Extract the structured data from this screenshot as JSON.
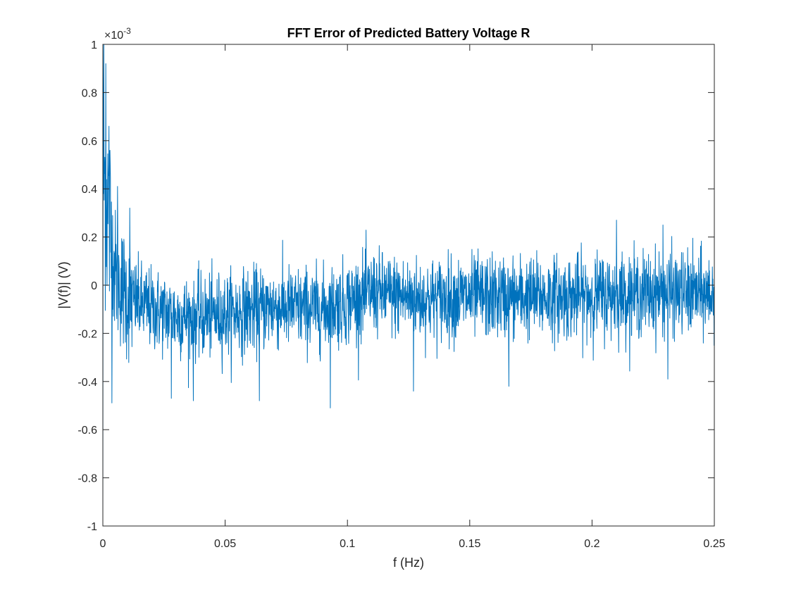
{
  "chart_data": {
    "type": "line",
    "title": "FFT Error of Predicted Battery Voltage R",
    "xlabel": "f (Hz)",
    "ylabel": "|V(f)| (V)",
    "exponent_label": "×10",
    "exponent_power": "-3",
    "xlim": [
      0,
      0.25
    ],
    "ylim": [
      -1,
      1
    ],
    "x_ticks": [
      0,
      0.05,
      0.1,
      0.15,
      0.2,
      0.25
    ],
    "x_tick_labels": [
      "0",
      "0.05",
      "0.1",
      "0.15",
      "0.2",
      "0.25"
    ],
    "y_ticks": [
      -1,
      -0.8,
      -0.6,
      -0.4,
      -0.2,
      0,
      0.2,
      0.4,
      0.6,
      0.8,
      1
    ],
    "y_tick_labels": [
      "-1",
      "-0.8",
      "-0.6",
      "-0.4",
      "-0.2",
      "0",
      "0.2",
      "0.4",
      "0.6",
      "0.8",
      "1"
    ],
    "grid": false,
    "series": [
      {
        "color": "#0072bd",
        "x_step": 0.0001,
        "y_scale": "1e-3",
        "peaks": [
          {
            "x": 0.0,
            "y": -1.0
          },
          {
            "x": 0.0004,
            "y": 1.0
          },
          {
            "x": 0.0012,
            "y": 0.92
          },
          {
            "x": 0.0025,
            "y": 0.66
          },
          {
            "x": 0.006,
            "y": 0.41
          },
          {
            "x": 0.011,
            "y": 0.32
          },
          {
            "x": 0.028,
            "y": -0.47
          },
          {
            "x": 0.037,
            "y": -0.48
          },
          {
            "x": 0.064,
            "y": -0.48
          },
          {
            "x": 0.093,
            "y": -0.51
          },
          {
            "x": 0.127,
            "y": -0.44
          },
          {
            "x": 0.166,
            "y": -0.42
          },
          {
            "x": 0.21,
            "y": 0.27
          },
          {
            "x": 0.229,
            "y": 0.25
          },
          {
            "x": 0.231,
            "y": -0.39
          }
        ],
        "trend": [
          {
            "x": 0.0,
            "y": 0.5
          },
          {
            "x": 0.005,
            "y": 0.05
          },
          {
            "x": 0.01,
            "y": -0.05
          },
          {
            "x": 0.02,
            "y": -0.1
          },
          {
            "x": 0.03,
            "y": -0.13
          },
          {
            "x": 0.04,
            "y": -0.13
          },
          {
            "x": 0.05,
            "y": -0.12
          },
          {
            "x": 0.07,
            "y": -0.09
          },
          {
            "x": 0.09,
            "y": -0.1
          },
          {
            "x": 0.1,
            "y": -0.07
          },
          {
            "x": 0.11,
            "y": -0.03
          },
          {
            "x": 0.13,
            "y": -0.06
          },
          {
            "x": 0.15,
            "y": -0.05
          },
          {
            "x": 0.17,
            "y": -0.05
          },
          {
            "x": 0.19,
            "y": -0.05
          },
          {
            "x": 0.21,
            "y": -0.04
          },
          {
            "x": 0.23,
            "y": -0.03
          },
          {
            "x": 0.25,
            "y": -0.04
          }
        ]
      }
    ]
  }
}
